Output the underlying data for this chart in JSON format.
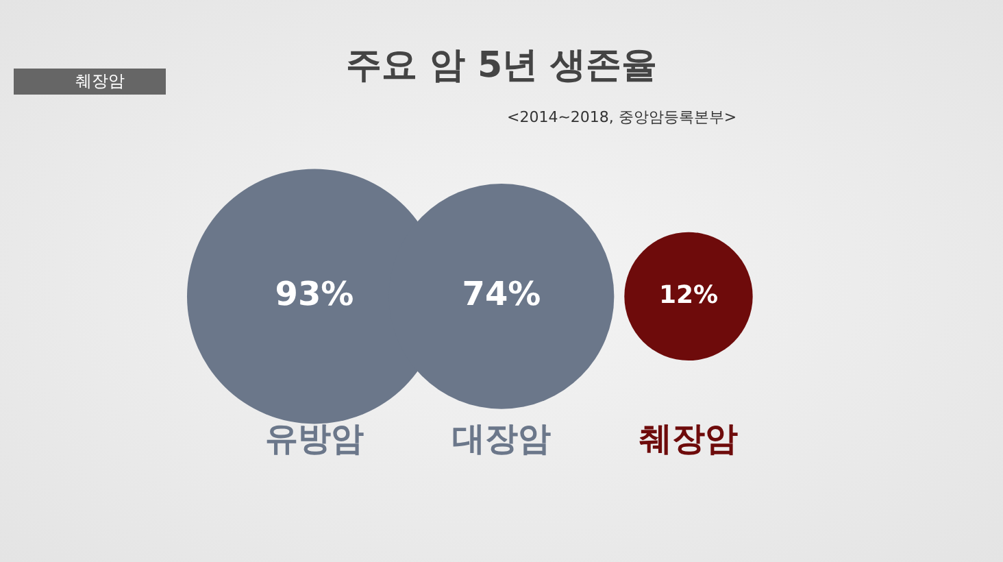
{
  "chart_data": {
    "type": "other",
    "title": "주요 암 5년 생존율",
    "subtitle": "<2014~2018, 중앙암등록본부>",
    "annotations": [
      "췌장암"
    ],
    "categories": [
      "유방암",
      "대장암",
      "췌장암"
    ],
    "values": [
      93,
      74,
      12
    ],
    "value_labels": [
      "93%",
      "74%",
      "12%"
    ],
    "colors": [
      "#6b778a",
      "#6b778a",
      "#6e0b0b"
    ]
  }
}
